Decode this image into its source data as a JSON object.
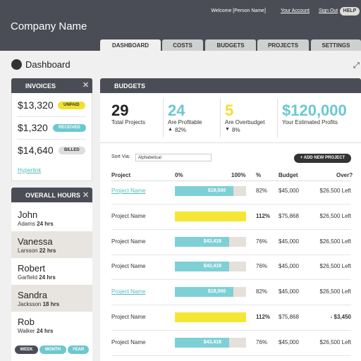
{
  "header": {
    "welcome": "Welcome [Person Name]",
    "account": "Your Account",
    "signout": "Sign Out",
    "help": "HELP",
    "company": "Company Name"
  },
  "tabs": [
    "DASHBOARD",
    "COSTS",
    "BUDGETS",
    "PROJECTS",
    "SETTINGS"
  ],
  "page_title": "Dashboard",
  "invoices": {
    "title": "INVOICES",
    "items": [
      {
        "amount": "$13,320",
        "status": "UNPAID"
      },
      {
        "amount": "$1,320",
        "status": "RECEIVED"
      },
      {
        "amount": "$14,640",
        "status": "BILLED"
      }
    ],
    "link": "Hyperlink"
  },
  "hours": {
    "title": "OVERALL HOURS",
    "people": [
      {
        "first": "John",
        "last": "Adams",
        "hours": "24 hrs"
      },
      {
        "first": "Vanessa",
        "last": "Larsson",
        "hours": "22 hrs"
      },
      {
        "first": "Robert",
        "last": "Garfield",
        "hours": "24 hrs"
      },
      {
        "first": "Sandra",
        "last": "Jacksson",
        "hours": "18 hrs"
      },
      {
        "first": "Rob",
        "last": "Walker",
        "hours": "24 hrs"
      }
    ],
    "buttons": [
      "WEEK",
      "MONTH",
      "YEAR"
    ]
  },
  "budgets": {
    "title": "BUDGETS",
    "stats": [
      {
        "value": "29",
        "label": "Total Projects"
      },
      {
        "value": "24",
        "label": "Are Profitable",
        "change": "82%"
      },
      {
        "value": "5",
        "label": "Are Overbudget",
        "change": "8%"
      },
      {
        "value": "$120,000",
        "label": "Your Estimated Profits"
      }
    ],
    "sort_label": "Sort Via:",
    "sort_value": "Alphabetical",
    "add_button": "+ ADD NEW PROJECT",
    "table": {
      "headers": [
        "Project",
        "0%",
        "100%",
        "%",
        "Budget",
        "Over?"
      ],
      "rows": [
        {
          "name": "Project Name",
          "link": true,
          "bar_label": "$18,500",
          "percent": "82%",
          "budget": "$45,000",
          "over": "$26,500 Left"
        },
        {
          "name": "Project Name",
          "link": false,
          "bar_label": "",
          "percent": "112%",
          "budget": "$75,868",
          "over": "$26,500 Left"
        },
        {
          "name": "Project Name",
          "link": false,
          "bar_label": "$43,418",
          "percent": "76%",
          "budget": "$45,000",
          "over": "$26,500 Left"
        },
        {
          "name": "Project Name",
          "link": false,
          "bar_label": "$43,418",
          "percent": "76%",
          "budget": "$45,000",
          "over": "$26,500 Left"
        },
        {
          "name": "Project Name",
          "link": true,
          "bar_label": "$18,500",
          "percent": "82%",
          "budget": "$45,000",
          "over": "$26,500 Left"
        },
        {
          "name": "Project Name",
          "link": false,
          "bar_label": "",
          "percent": "112%",
          "budget": "$75,868",
          "over": "- $3,450"
        },
        {
          "name": "Project Name",
          "link": false,
          "bar_label": "$43,418",
          "percent": "76%",
          "budget": "$45,000",
          "over": "$26,500 Left"
        }
      ]
    }
  }
}
